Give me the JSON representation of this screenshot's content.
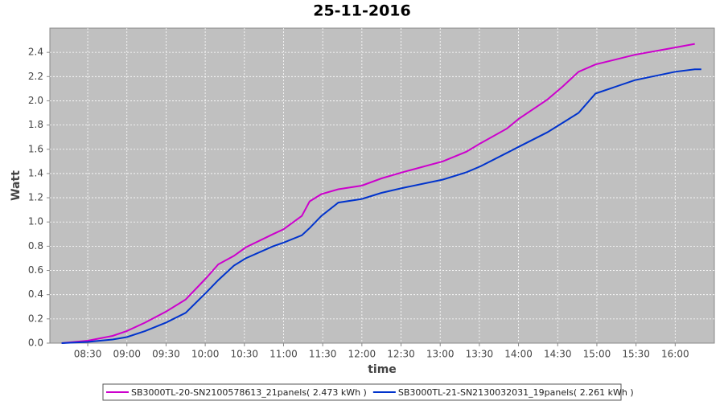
{
  "chart_data": {
    "type": "line",
    "title": "25-11-2016",
    "xlabel": "time",
    "ylabel": "Watt",
    "x": [
      "08:10",
      "08:30",
      "08:49",
      "09:00",
      "09:14",
      "09:30",
      "09:45",
      "10:01",
      "10:10",
      "10:22",
      "10:31",
      "10:52",
      "11:00",
      "11:14",
      "11:20",
      "11:29",
      "11:42",
      "12:00",
      "12:15",
      "12:31",
      "13:02",
      "13:20",
      "13:31",
      "13:51",
      "14:00",
      "14:22",
      "14:34",
      "14:46",
      "14:59",
      "15:29",
      "16:00",
      "16:15",
      "16:20"
    ],
    "series": [
      {
        "name": "SB3000TL-20-SN2100578613_21panels( 2.473 kWh )",
        "color": "#cc00cc",
        "values": [
          0,
          0.02,
          0.06,
          0.1,
          0.17,
          0.26,
          0.36,
          0.54,
          0.65,
          0.72,
          0.79,
          0.9,
          0.94,
          1.05,
          1.17,
          1.23,
          1.27,
          1.3,
          1.36,
          1.41,
          1.5,
          1.58,
          1.65,
          1.77,
          1.85,
          2.01,
          2.12,
          2.24,
          2.3,
          2.38,
          2.44,
          2.47,
          null
        ]
      },
      {
        "name": "SB3000TL-21-SN2130032031_19panels( 2.261 kWh )",
        "color": "#0033cc",
        "values": [
          0,
          0.01,
          0.03,
          0.05,
          0.1,
          0.17,
          0.25,
          0.42,
          0.52,
          0.64,
          0.7,
          0.8,
          0.83,
          0.89,
          0.95,
          1.05,
          1.16,
          1.19,
          1.24,
          1.28,
          1.35,
          1.41,
          1.46,
          1.57,
          1.62,
          1.74,
          1.82,
          1.9,
          2.06,
          2.17,
          2.24,
          2.26,
          2.26
        ]
      }
    ],
    "xlim": [
      "08:01",
      "16:30"
    ],
    "xticks": [
      "08:30",
      "09:00",
      "09:30",
      "10:00",
      "10:30",
      "11:00",
      "11:30",
      "12:00",
      "12:30",
      "13:00",
      "13:30",
      "14:00",
      "14:30",
      "15:00",
      "15:30",
      "16:00"
    ],
    "ylim": [
      0,
      2.6
    ],
    "yticks": [
      {
        "value": 0,
        "label": "0.0"
      },
      {
        "value": 0.2,
        "label": "0.2"
      },
      {
        "value": 0.4,
        "label": "0.4"
      },
      {
        "value": 0.6,
        "label": "0.6"
      },
      {
        "value": 0.8,
        "label": "0.8"
      },
      {
        "value": 1,
        "label": "1.0"
      },
      {
        "value": 1.2,
        "label": "1.2"
      },
      {
        "value": 1.4,
        "label": "1.4"
      },
      {
        "value": 1.6,
        "label": "1.6"
      },
      {
        "value": 1.8,
        "label": "1.8"
      },
      {
        "value": 2,
        "label": "2.0"
      },
      {
        "value": 2.2,
        "label": "2.2"
      },
      {
        "value": 2.4,
        "label": "2.4"
      }
    ],
    "grid": true,
    "legend": "bottom"
  }
}
